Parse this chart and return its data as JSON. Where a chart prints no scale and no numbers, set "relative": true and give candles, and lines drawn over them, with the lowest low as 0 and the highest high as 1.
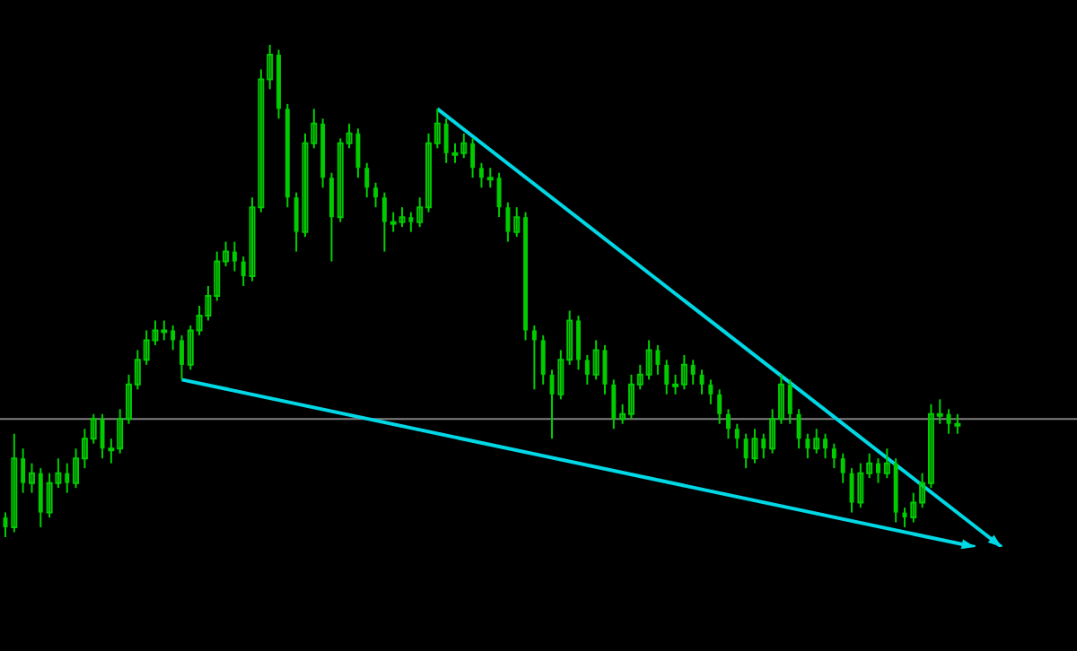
{
  "chart_data": {
    "type": "candlestick",
    "relative": true,
    "color": "#00cc00",
    "legend": false,
    "tick_labels": false,
    "categories": [
      null,
      null,
      null,
      null,
      null,
      null,
      null,
      null,
      null,
      null,
      null,
      null,
      null,
      null,
      null,
      null,
      null,
      null,
      null,
      null,
      null,
      null,
      null,
      null,
      null,
      null,
      null,
      null,
      null,
      null,
      null,
      null,
      null,
      null,
      null,
      null,
      null,
      null,
      null,
      null,
      null,
      null,
      null,
      null,
      null,
      null,
      null,
      null,
      null,
      null,
      null,
      null,
      null,
      null,
      null,
      null,
      null,
      null,
      null,
      null,
      null,
      null,
      null,
      null,
      null,
      null,
      null,
      null,
      null,
      null,
      null,
      null,
      null,
      null,
      null,
      null,
      null,
      null,
      null,
      null,
      null,
      null,
      null,
      null,
      null,
      null,
      null,
      null,
      null,
      null,
      null,
      null,
      null,
      null,
      null,
      null,
      null,
      null,
      null,
      null,
      null,
      null,
      null,
      null,
      null,
      null,
      null,
      null,
      null,
      null,
      null,
      null,
      null,
      null
    ],
    "ohlc": [
      [
        0.04,
        0.05,
        0.0,
        0.02
      ],
      [
        0.02,
        0.21,
        0.01,
        0.16
      ],
      [
        0.16,
        0.18,
        0.09,
        0.11
      ],
      [
        0.11,
        0.15,
        0.09,
        0.13
      ],
      [
        0.13,
        0.14,
        0.02,
        0.05
      ],
      [
        0.05,
        0.13,
        0.04,
        0.11
      ],
      [
        0.11,
        0.16,
        0.1,
        0.13
      ],
      [
        0.13,
        0.15,
        0.09,
        0.11
      ],
      [
        0.11,
        0.18,
        0.1,
        0.16
      ],
      [
        0.16,
        0.22,
        0.14,
        0.2
      ],
      [
        0.2,
        0.25,
        0.19,
        0.24
      ],
      [
        0.24,
        0.25,
        0.16,
        0.18
      ],
      [
        0.18,
        0.2,
        0.15,
        0.18
      ],
      [
        0.18,
        0.26,
        0.17,
        0.24
      ],
      [
        0.24,
        0.33,
        0.23,
        0.31
      ],
      [
        0.31,
        0.38,
        0.3,
        0.36
      ],
      [
        0.36,
        0.42,
        0.35,
        0.4
      ],
      [
        0.4,
        0.44,
        0.39,
        0.42
      ],
      [
        0.42,
        0.44,
        0.4,
        0.42
      ],
      [
        0.42,
        0.43,
        0.38,
        0.4
      ],
      [
        0.4,
        0.41,
        0.32,
        0.35
      ],
      [
        0.35,
        0.43,
        0.34,
        0.42
      ],
      [
        0.42,
        0.47,
        0.41,
        0.45
      ],
      [
        0.45,
        0.51,
        0.44,
        0.49
      ],
      [
        0.49,
        0.58,
        0.48,
        0.56
      ],
      [
        0.56,
        0.6,
        0.55,
        0.58
      ],
      [
        0.58,
        0.6,
        0.54,
        0.56
      ],
      [
        0.56,
        0.57,
        0.51,
        0.53
      ],
      [
        0.53,
        0.69,
        0.52,
        0.67
      ],
      [
        0.67,
        0.95,
        0.66,
        0.93
      ],
      [
        0.93,
        1.0,
        0.91,
        0.98
      ],
      [
        0.98,
        0.99,
        0.85,
        0.87
      ],
      [
        0.87,
        0.88,
        0.67,
        0.69
      ],
      [
        0.69,
        0.7,
        0.58,
        0.62
      ],
      [
        0.62,
        0.82,
        0.61,
        0.8
      ],
      [
        0.8,
        0.87,
        0.79,
        0.84
      ],
      [
        0.84,
        0.85,
        0.71,
        0.73
      ],
      [
        0.73,
        0.74,
        0.56,
        0.65
      ],
      [
        0.65,
        0.81,
        0.64,
        0.8
      ],
      [
        0.8,
        0.84,
        0.79,
        0.82
      ],
      [
        0.82,
        0.83,
        0.73,
        0.75
      ],
      [
        0.75,
        0.76,
        0.69,
        0.71
      ],
      [
        0.71,
        0.72,
        0.67,
        0.69
      ],
      [
        0.69,
        0.7,
        0.58,
        0.64
      ],
      [
        0.64,
        0.66,
        0.62,
        0.64
      ],
      [
        0.64,
        0.67,
        0.63,
        0.65
      ],
      [
        0.65,
        0.66,
        0.62,
        0.64
      ],
      [
        0.64,
        0.69,
        0.63,
        0.67
      ],
      [
        0.67,
        0.82,
        0.66,
        0.8
      ],
      [
        0.8,
        0.87,
        0.79,
        0.84
      ],
      [
        0.84,
        0.85,
        0.76,
        0.78
      ],
      [
        0.78,
        0.8,
        0.76,
        0.78
      ],
      [
        0.78,
        0.82,
        0.77,
        0.8
      ],
      [
        0.8,
        0.81,
        0.73,
        0.75
      ],
      [
        0.75,
        0.76,
        0.71,
        0.73
      ],
      [
        0.73,
        0.75,
        0.71,
        0.73
      ],
      [
        0.73,
        0.74,
        0.65,
        0.67
      ],
      [
        0.67,
        0.68,
        0.6,
        0.62
      ],
      [
        0.62,
        0.67,
        0.61,
        0.65
      ],
      [
        0.65,
        0.66,
        0.4,
        0.42
      ],
      [
        0.42,
        0.43,
        0.3,
        0.4
      ],
      [
        0.4,
        0.41,
        0.31,
        0.33
      ],
      [
        0.33,
        0.34,
        0.2,
        0.29
      ],
      [
        0.29,
        0.38,
        0.28,
        0.36
      ],
      [
        0.36,
        0.46,
        0.35,
        0.44
      ],
      [
        0.44,
        0.45,
        0.34,
        0.36
      ],
      [
        0.36,
        0.37,
        0.31,
        0.33
      ],
      [
        0.33,
        0.4,
        0.32,
        0.38
      ],
      [
        0.38,
        0.39,
        0.29,
        0.31
      ],
      [
        0.31,
        0.32,
        0.22,
        0.24
      ],
      [
        0.24,
        0.27,
        0.23,
        0.25
      ],
      [
        0.25,
        0.33,
        0.24,
        0.31
      ],
      [
        0.31,
        0.35,
        0.3,
        0.33
      ],
      [
        0.33,
        0.4,
        0.32,
        0.38
      ],
      [
        0.38,
        0.39,
        0.33,
        0.35
      ],
      [
        0.35,
        0.36,
        0.29,
        0.31
      ],
      [
        0.31,
        0.33,
        0.29,
        0.31
      ],
      [
        0.31,
        0.37,
        0.3,
        0.35
      ],
      [
        0.35,
        0.36,
        0.31,
        0.33
      ],
      [
        0.33,
        0.34,
        0.29,
        0.31
      ],
      [
        0.31,
        0.32,
        0.27,
        0.29
      ],
      [
        0.29,
        0.3,
        0.23,
        0.25
      ],
      [
        0.25,
        0.26,
        0.2,
        0.22
      ],
      [
        0.22,
        0.23,
        0.18,
        0.2
      ],
      [
        0.2,
        0.21,
        0.14,
        0.16
      ],
      [
        0.16,
        0.22,
        0.15,
        0.2
      ],
      [
        0.2,
        0.21,
        0.16,
        0.18
      ],
      [
        0.18,
        0.26,
        0.17,
        0.24
      ],
      [
        0.24,
        0.33,
        0.23,
        0.31
      ],
      [
        0.31,
        0.32,
        0.23,
        0.25
      ],
      [
        0.25,
        0.26,
        0.18,
        0.2
      ],
      [
        0.2,
        0.21,
        0.16,
        0.18
      ],
      [
        0.18,
        0.22,
        0.17,
        0.2
      ],
      [
        0.2,
        0.21,
        0.16,
        0.18
      ],
      [
        0.18,
        0.19,
        0.14,
        0.16
      ],
      [
        0.16,
        0.17,
        0.11,
        0.13
      ],
      [
        0.13,
        0.14,
        0.05,
        0.07
      ],
      [
        0.07,
        0.15,
        0.06,
        0.13
      ],
      [
        0.13,
        0.17,
        0.12,
        0.15
      ],
      [
        0.15,
        0.16,
        0.11,
        0.13
      ],
      [
        0.13,
        0.18,
        0.12,
        0.15
      ],
      [
        0.15,
        0.16,
        0.03,
        0.05
      ],
      [
        0.05,
        0.06,
        0.02,
        0.04
      ],
      [
        0.04,
        0.09,
        0.03,
        0.07
      ],
      [
        0.07,
        0.13,
        0.06,
        0.11
      ],
      [
        0.11,
        0.27,
        0.1,
        0.25
      ],
      [
        0.25,
        0.28,
        0.23,
        0.25
      ],
      [
        0.25,
        0.26,
        0.21,
        0.23
      ],
      [
        0.23,
        0.25,
        0.21,
        0.23
      ],
      null,
      null,
      null,
      null,
      null
    ],
    "series": [
      {
        "type": "line",
        "color": "#00d8e6",
        "values": [
          null,
          null,
          null,
          null,
          null,
          null,
          null,
          null,
          null,
          null,
          null,
          null,
          null,
          null,
          null,
          null,
          null,
          null,
          null,
          null,
          null,
          null,
          null,
          null,
          null,
          null,
          null,
          null,
          null,
          null,
          null,
          null,
          null,
          null,
          null,
          null,
          null,
          null,
          null,
          null,
          null,
          null,
          null,
          null,
          null,
          null,
          null,
          null,
          null,
          0.87,
          null,
          null,
          null,
          null,
          null,
          null,
          null,
          null,
          null,
          null,
          null,
          null,
          null,
          null,
          null,
          null,
          null,
          null,
          null,
          null,
          null,
          null,
          null,
          null,
          null,
          null,
          null,
          null,
          null,
          null,
          null,
          null,
          null,
          null,
          null,
          null,
          null,
          null,
          null,
          null,
          null,
          null,
          null,
          null,
          null,
          null,
          null,
          null,
          null,
          null,
          null,
          null,
          null,
          null,
          null,
          null,
          null,
          null,
          null,
          null,
          null,
          null,
          null,
          -0.02
        ]
      },
      {
        "type": "line",
        "color": "#00d8e6",
        "values": [
          null,
          null,
          null,
          null,
          null,
          null,
          null,
          null,
          null,
          null,
          null,
          null,
          null,
          null,
          null,
          null,
          null,
          null,
          null,
          null,
          0.32,
          null,
          null,
          null,
          null,
          null,
          null,
          null,
          null,
          null,
          null,
          null,
          null,
          null,
          null,
          null,
          null,
          null,
          null,
          null,
          null,
          null,
          null,
          null,
          null,
          null,
          null,
          null,
          null,
          null,
          null,
          null,
          null,
          null,
          null,
          null,
          null,
          null,
          null,
          null,
          null,
          null,
          null,
          null,
          null,
          null,
          null,
          null,
          null,
          null,
          null,
          null,
          null,
          null,
          null,
          null,
          null,
          null,
          null,
          null,
          null,
          null,
          null,
          null,
          null,
          null,
          null,
          null,
          null,
          null,
          null,
          null,
          null,
          null,
          null,
          null,
          null,
          null,
          null,
          null,
          null,
          null,
          null,
          null,
          null,
          null,
          null,
          null,
          null,
          null,
          -0.02,
          null,
          null,
          null
        ]
      }
    ],
    "ref_lines": [
      {
        "axis": "y",
        "value": 0.24,
        "color": "#808080"
      }
    ]
  }
}
